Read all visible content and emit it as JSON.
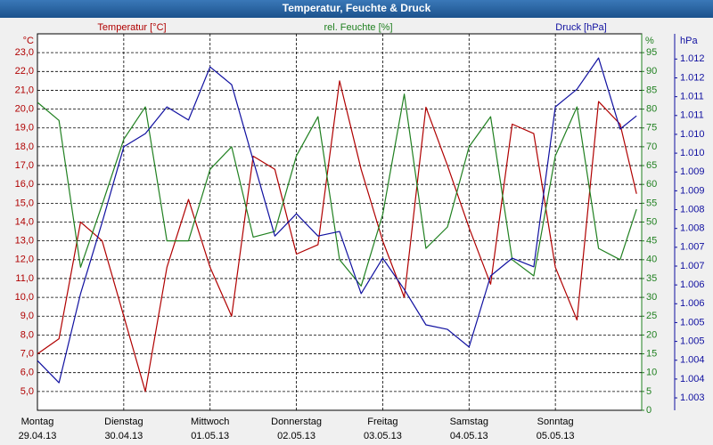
{
  "chart_data": {
    "type": "line",
    "title": "Temperatur, Feuchte & Druck",
    "ylabel": "Temperatur [°C]",
    "y2label": "rel. Feuchte [%]",
    "y3label": "Druck [hPa]",
    "y_unit": "°C",
    "y2_unit": "%",
    "y3_unit": "hPa",
    "x": [
      0,
      0.25,
      0.5,
      0.75,
      1,
      1.25,
      1.5,
      1.75,
      2,
      2.25,
      2.5,
      2.75,
      3,
      3.25,
      3.5,
      3.75,
      4,
      4.25,
      4.5,
      4.75,
      5,
      5.25,
      5.5,
      5.75,
      6,
      6.25,
      6.5,
      6.75,
      6.94
    ],
    "xlim": [
      0,
      7
    ],
    "xticks": [
      {
        "value": 0,
        "label": "Montag"
      },
      {
        "value": 1,
        "label": "Dienstag"
      },
      {
        "value": 2,
        "label": "Mittwoch"
      },
      {
        "value": 3,
        "label": "Donnerstag"
      },
      {
        "value": 4,
        "label": "Freitag"
      },
      {
        "value": 5,
        "label": "Samstag"
      },
      {
        "value": 6,
        "label": "Sonntag"
      }
    ],
    "xtick_dates": [
      "29.04.13",
      "30.04.13",
      "01.05.13",
      "02.05.13",
      "03.05.13",
      "04.05.13",
      "05.05.13"
    ],
    "ylim": [
      4,
      24
    ],
    "yticks": [
      {
        "value": 5,
        "label": "5,0"
      },
      {
        "value": 6,
        "label": "6,0"
      },
      {
        "value": 7,
        "label": "7,0"
      },
      {
        "value": 8,
        "label": "8,0"
      },
      {
        "value": 9,
        "label": "9,0"
      },
      {
        "value": 10,
        "label": "10,0"
      },
      {
        "value": 11,
        "label": "11,0"
      },
      {
        "value": 12,
        "label": "12,0"
      },
      {
        "value": 13,
        "label": "13,0"
      },
      {
        "value": 14,
        "label": "14,0"
      },
      {
        "value": 15,
        "label": "15,0"
      },
      {
        "value": 16,
        "label": "16,0"
      },
      {
        "value": 17,
        "label": "17,0"
      },
      {
        "value": 18,
        "label": "18,0"
      },
      {
        "value": 19,
        "label": "19,0"
      },
      {
        "value": 20,
        "label": "20,0"
      },
      {
        "value": 21,
        "label": "21,0"
      },
      {
        "value": 22,
        "label": "22,0"
      },
      {
        "value": 23,
        "label": "23,0"
      }
    ],
    "y2lim": [
      0,
      100
    ],
    "y2ticks": [
      0,
      5,
      10,
      15,
      20,
      25,
      30,
      35,
      40,
      45,
      50,
      55,
      60,
      65,
      70,
      75,
      80,
      85,
      90,
      95
    ],
    "y3lim": [
      1.00267,
      1.01267
    ],
    "y3ticks": [
      {
        "value": 1.003,
        "label": "1.003"
      },
      {
        "value": 1.0035,
        "label": "1.004"
      },
      {
        "value": 1.004,
        "label": "1.004"
      },
      {
        "value": 1.0045,
        "label": "1.005"
      },
      {
        "value": 1.005,
        "label": "1.005"
      },
      {
        "value": 1.0055,
        "label": "1.006"
      },
      {
        "value": 1.006,
        "label": "1.006"
      },
      {
        "value": 1.0065,
        "label": "1.007"
      },
      {
        "value": 1.007,
        "label": "1.007"
      },
      {
        "value": 1.0075,
        "label": "1.008"
      },
      {
        "value": 1.008,
        "label": "1.008"
      },
      {
        "value": 1.0085,
        "label": "1.009"
      },
      {
        "value": 1.009,
        "label": "1.009"
      },
      {
        "value": 1.0095,
        "label": "1.010"
      },
      {
        "value": 1.01,
        "label": "1.010"
      },
      {
        "value": 1.0105,
        "label": "1.011"
      },
      {
        "value": 1.011,
        "label": "1.011"
      },
      {
        "value": 1.0115,
        "label": "1.012"
      },
      {
        "value": 1.012,
        "label": "1.012"
      }
    ],
    "grid": true,
    "series": [
      {
        "name": "Temperatur",
        "color": "#b00000",
        "axis": "y",
        "values": [
          7.0,
          7.8,
          14.0,
          13.0,
          9.0,
          5.0,
          11.6,
          15.2,
          11.6,
          9.0,
          17.5,
          16.8,
          12.3,
          12.8,
          21.5,
          16.8,
          13.0,
          10.0,
          20.1,
          17.0,
          13.7,
          10.7,
          19.2,
          18.7,
          11.6,
          8.8,
          20.4,
          19.2,
          15.5
        ]
      },
      {
        "name": "Feuchte",
        "color": "#208020",
        "axis": "y2",
        "values": [
          81.8,
          77,
          38,
          54.6,
          72,
          80.6,
          45,
          45,
          64,
          70,
          46,
          47.5,
          67.6,
          78,
          40,
          33,
          52,
          84,
          43,
          48.7,
          70,
          78,
          40,
          35.7,
          67.6,
          80.6,
          43,
          40,
          53.4
        ]
      },
      {
        "name": "Druck",
        "color": "#1010a0",
        "axis": "y3",
        "values": [
          1.00399,
          1.0034,
          1.00577,
          1.00766,
          1.00967,
          1.01002,
          1.01073,
          1.01038,
          1.01179,
          1.01132,
          1.00931,
          1.0073,
          1.00789,
          1.0073,
          1.00742,
          1.00577,
          1.00671,
          1.00588,
          1.00494,
          1.00482,
          1.00435,
          1.00624,
          1.00671,
          1.00648,
          1.01073,
          1.0112,
          1.01203,
          1.01014,
          1.01049
        ]
      }
    ]
  }
}
